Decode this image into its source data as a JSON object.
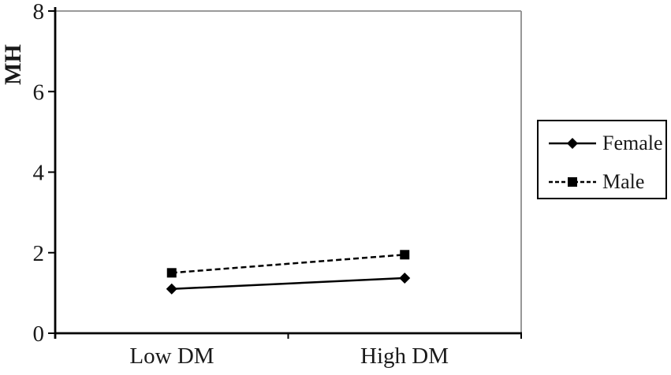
{
  "chart_data": {
    "type": "line",
    "title": "",
    "categories": [
      "Low DM",
      "High DM"
    ],
    "series": [
      {
        "name": "Female",
        "values": [
          1.1,
          1.37
        ],
        "line_style": "solid",
        "marker": "diamond"
      },
      {
        "name": "Male",
        "values": [
          1.5,
          1.95
        ],
        "line_style": "dashed",
        "marker": "square"
      }
    ],
    "xlabel": "",
    "ylabel": "MH",
    "ylim": [
      0,
      8
    ],
    "y_ticks": [
      0,
      2,
      4,
      6,
      8
    ],
    "grid": false,
    "legend_position": "right-outside",
    "colors": {
      "line": "#000000",
      "marker": "#000000",
      "frame_gray": "#8c8c8c",
      "text": "#1a1a1a",
      "background": "#ffffff"
    }
  }
}
